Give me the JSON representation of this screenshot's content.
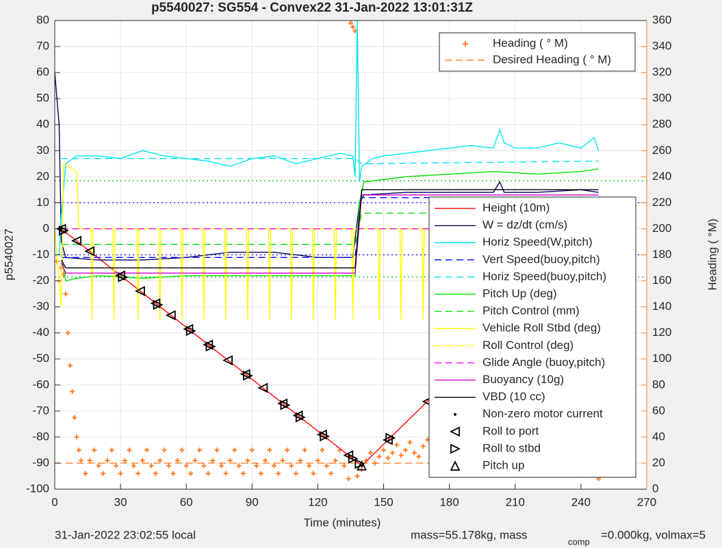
{
  "chart_data": {
    "type": "line",
    "title": "p5540027: SG554 - Convex22 31-Jan-2022 13:01:31Z",
    "xlabel": "Time (minutes)",
    "ylabel": "p5540027",
    "y2label": "Heading (  °M)",
    "y2color": "#ff7f27",
    "xlim": [
      0,
      270
    ],
    "xticks": [
      0,
      30,
      60,
      90,
      120,
      150,
      180,
      210,
      240,
      270
    ],
    "ylim": [
      -100,
      80
    ],
    "yticks": [
      -100,
      -90,
      -80,
      -70,
      -60,
      -50,
      -40,
      -30,
      -20,
      -10,
      0,
      10,
      20,
      30,
      40,
      50,
      60,
      70,
      80
    ],
    "y2lim": [
      0,
      360
    ],
    "y2ticks": [
      0,
      20,
      40,
      60,
      80,
      100,
      120,
      140,
      160,
      180,
      200,
      220,
      240,
      260,
      280,
      300,
      320,
      340,
      360
    ],
    "grid": true,
    "footer": [
      "31-Jan-2022 23:02:55 local",
      "mass=55.178kg, mass",
      "comp",
      "=0.000kg, volmax=5"
    ],
    "reference_lines": [
      {
        "value": 18.5,
        "color": "#00c000"
      },
      {
        "value": -18.5,
        "color": "#00c000"
      },
      {
        "value": 10,
        "color": "#0000ff"
      },
      {
        "value": -10,
        "color": "#0000ff"
      }
    ],
    "series": [
      {
        "name": "Heading (  ° M)",
        "color": "#ff7f27",
        "axis": "y2",
        "style": "markers",
        "marker": "plus",
        "x": [
          1,
          2,
          3,
          4,
          5,
          6,
          7,
          8,
          9,
          10,
          11,
          12,
          14,
          16,
          18,
          20,
          22,
          24,
          26,
          28,
          30,
          32,
          34,
          36,
          38,
          40,
          42,
          44,
          46,
          48,
          50,
          52,
          54,
          56,
          58,
          60,
          62,
          64,
          66,
          68,
          70,
          72,
          74,
          76,
          78,
          80,
          82,
          84,
          86,
          88,
          90,
          92,
          94,
          96,
          98,
          100,
          102,
          104,
          106,
          108,
          110,
          112,
          114,
          116,
          118,
          120,
          122,
          124,
          126,
          128,
          130,
          132,
          134,
          135,
          136,
          137,
          138,
          140,
          142,
          144,
          146,
          148,
          150,
          152,
          154,
          156,
          158,
          160,
          162,
          164,
          166,
          168,
          170,
          172,
          174,
          176,
          178,
          180,
          182,
          184,
          186,
          188,
          190,
          192,
          194,
          196,
          198,
          200,
          202,
          204,
          206,
          208,
          210,
          212,
          214,
          216,
          218,
          220,
          222,
          224,
          226,
          228,
          230,
          232,
          234,
          236,
          238,
          240,
          242,
          243,
          244,
          246,
          247,
          248
        ],
        "values": [
          175,
          160,
          170,
          165,
          150,
          120,
          95,
          75,
          55,
          40,
          30,
          22,
          12,
          22,
          30,
          18,
          12,
          22,
          30,
          18,
          12,
          22,
          30,
          18,
          12,
          22,
          30,
          18,
          12,
          22,
          30,
          18,
          12,
          22,
          30,
          18,
          12,
          22,
          30,
          18,
          12,
          22,
          30,
          18,
          12,
          22,
          30,
          18,
          12,
          22,
          30,
          18,
          12,
          22,
          30,
          18,
          12,
          22,
          30,
          18,
          12,
          22,
          30,
          18,
          12,
          22,
          30,
          18,
          12,
          22,
          30,
          18,
          8,
          358,
          355,
          352,
          10,
          15,
          22,
          28,
          20,
          25,
          30,
          24,
          28,
          34,
          26,
          30,
          36,
          28,
          25,
          33,
          38,
          30,
          26,
          34,
          38,
          28,
          25,
          34,
          40,
          30,
          26,
          34,
          40,
          30,
          27,
          35,
          40,
          30,
          28,
          36,
          40,
          30,
          28,
          36,
          42,
          30,
          28,
          36,
          42,
          32,
          30,
          38,
          44,
          34,
          30,
          40,
          42,
          48,
          40,
          25,
          15,
          8
        ]
      },
      {
        "name": "Desired Heading (    ° M)",
        "color": "#ff7f27",
        "axis": "y2",
        "style": "dashed",
        "x": [
          0,
          248
        ],
        "values": [
          20,
          20
        ]
      },
      {
        "name": "Height (10m)",
        "color": "#ff0000",
        "style": "solid",
        "x": [
          3,
          140,
          248
        ],
        "values": [
          0,
          -91,
          -2
        ]
      },
      {
        "name": "W = dz/dt (cm/s)",
        "color": "#000060",
        "style": "solid",
        "x": [
          0,
          2,
          3,
          5,
          20,
          40,
          60,
          80,
          100,
          120,
          136,
          139,
          141,
          160,
          180,
          200,
          203,
          205,
          220,
          240,
          248
        ],
        "values": [
          60,
          40,
          -5,
          -11,
          -12,
          -12,
          -11,
          -9,
          -9,
          -11,
          -11,
          10,
          13,
          14,
          14,
          14,
          18,
          14,
          14,
          15,
          14
        ]
      },
      {
        "name": "Horiz Speed(W,pitch)",
        "color": "#00e5ee",
        "style": "solid",
        "x": [
          2,
          3,
          5,
          10,
          20,
          30,
          40,
          50,
          60,
          70,
          80,
          90,
          100,
          110,
          120,
          130,
          136,
          137,
          138,
          139,
          140,
          145,
          150,
          160,
          170,
          180,
          190,
          200,
          203,
          205,
          210,
          220,
          230,
          240,
          246,
          248
        ],
        "values": [
          -10,
          5,
          25,
          28,
          28,
          27,
          30,
          28,
          27,
          26,
          24,
          27,
          28,
          25,
          27,
          29,
          28,
          20,
          80,
          18,
          24,
          27,
          28,
          29,
          30,
          31,
          32,
          31,
          38,
          33,
          31,
          31,
          33,
          31,
          35,
          30
        ]
      },
      {
        "name": "Vert Speed(buoy,pitch)",
        "color": "#0000ff",
        "style": "dashed",
        "x": [
          3,
          137,
          140,
          248
        ],
        "values": [
          -11,
          -11,
          12,
          12
        ]
      },
      {
        "name": "Horiz Speed(buoy,pitch)",
        "color": "#00e5ee",
        "style": "dashed",
        "x": [
          3,
          137,
          140,
          248
        ],
        "values": [
          27,
          27,
          25,
          26
        ]
      },
      {
        "name": "Pitch Up (deg)",
        "color": "#00e000",
        "style": "solid",
        "x": [
          3,
          5,
          10,
          20,
          40,
          60,
          80,
          100,
          120,
          137,
          139,
          141,
          160,
          180,
          200,
          220,
          240,
          248
        ],
        "values": [
          -10,
          -20,
          -19,
          -18,
          -19,
          -18,
          -18,
          -18,
          -18,
          -18,
          10,
          18,
          20,
          21,
          22,
          21,
          22,
          23
        ]
      },
      {
        "name": "Pitch Control (mm)",
        "color": "#00e000",
        "style": "dashed",
        "x": [
          3,
          137,
          140,
          248
        ],
        "values": [
          -6,
          -6,
          6,
          6
        ]
      },
      {
        "name": "Vehicle Roll Stbd (deg)",
        "color": "#ffff00",
        "style": "solid",
        "x": [
          0,
          3,
          4,
          10,
          11,
          16.5,
          17,
          17.5,
          26.5,
          27,
          27.5,
          37.5,
          38,
          38.5,
          47.5,
          48,
          48.5,
          57.5,
          58,
          58.5,
          67.5,
          68,
          68.5,
          77.5,
          78,
          78.5,
          87.5,
          88,
          88.5,
          97.5,
          98,
          98.5,
          107.5,
          108,
          108.5,
          117.5,
          118,
          118.5,
          127.5,
          128,
          128.5,
          135.5,
          136,
          136.5,
          147.5,
          148,
          148.5,
          157.5,
          158,
          158.5,
          167.5,
          168,
          168.5,
          177.5,
          178,
          178.5,
          187.5,
          188,
          188.5,
          197.5,
          198,
          198.5,
          207.5,
          208,
          208.5,
          217.5,
          218,
          218.5,
          227.5,
          228,
          228.5,
          237.5,
          238,
          238.5,
          245.5,
          246,
          246.5,
          248
        ],
        "values": [
          0,
          -30,
          25,
          22,
          0,
          0,
          -35,
          0,
          0,
          -35,
          0,
          0,
          -35,
          0,
          0,
          -35,
          0,
          0,
          -35,
          0,
          0,
          -35,
          0,
          0,
          -35,
          0,
          0,
          -35,
          0,
          0,
          -35,
          0,
          0,
          -35,
          0,
          0,
          -35,
          0,
          0,
          -35,
          0,
          0,
          -35,
          0,
          0,
          -35,
          0,
          0,
          -35,
          0,
          0,
          -35,
          0,
          0,
          -35,
          0,
          0,
          -35,
          0,
          0,
          -35,
          0,
          0,
          -35,
          0,
          0,
          -35,
          0,
          0,
          -35,
          0,
          0,
          -35,
          0,
          0,
          -35,
          0,
          0
        ]
      },
      {
        "name": "Roll Control (deg)",
        "color": "#ffff00",
        "style": "dashed",
        "x": [
          3,
          248
        ],
        "values": [
          0,
          0
        ]
      },
      {
        "name": "Glide Angle (buoy,pitch)",
        "color": "#ff00ff",
        "style": "dashed",
        "x": [
          3,
          248
        ],
        "values": [
          0,
          0
        ]
      },
      {
        "name": "Buoyancy (10g)",
        "color": "#cc00cc",
        "style": "solid",
        "x": [
          3,
          5,
          137,
          140,
          248
        ],
        "values": [
          -13,
          -17,
          -17,
          13,
          13
        ]
      },
      {
        "name": "VBD (10 cc)",
        "color": "#000000",
        "style": "solid",
        "x": [
          3,
          5,
          137,
          140,
          248
        ],
        "values": [
          -12,
          -15,
          -15,
          15,
          15
        ]
      },
      {
        "name": "Non-zero motor current",
        "color": "#000000",
        "style": "markers",
        "marker": "dot",
        "x": [
          3,
          140,
          248
        ],
        "values": [
          0,
          -91,
          -2
        ]
      },
      {
        "name": "Roll to port",
        "color": "#000000",
        "style": "markers",
        "marker": "triangle-left",
        "x": [
          3,
          10,
          16,
          30,
          39,
          46,
          53,
          61,
          70,
          79,
          87,
          95,
          104,
          111,
          122,
          134,
          152,
          170,
          181,
          189,
          203,
          214,
          222,
          229,
          236,
          245
        ],
        "values": [
          0,
          -4.6,
          -8.6,
          -17.9,
          -23.9,
          -28.6,
          -33.2,
          -38.5,
          -44.5,
          -50.5,
          -55.8,
          -61.1,
          -67.1,
          -71.7,
          -79,
          -87,
          -81.1,
          -66.3,
          -57.2,
          -50.6,
          -39.1,
          -30,
          -23.4,
          -17.7,
          -11.9,
          -4.5
        ]
      },
      {
        "name": "Roll to stbd",
        "color": "#000000",
        "style": "markers",
        "marker": "triangle-right",
        "x": [
          4,
          31,
          47,
          62,
          71,
          88,
          105,
          112,
          123,
          136,
          139,
          153,
          176,
          189,
          204,
          215,
          223,
          230,
          237,
          248
        ],
        "values": [
          -0.7,
          -18.6,
          -29.2,
          -39.2,
          -45.2,
          -56.4,
          -67.7,
          -72.4,
          -79.7,
          -88.3,
          -90.3,
          -80.3,
          -61.4,
          -50.6,
          -38.3,
          -29.2,
          -22.6,
          -16.9,
          -11.1,
          -1.6
        ]
      },
      {
        "name": "Pitch up",
        "color": "#000000",
        "style": "markers",
        "marker": "triangle-up",
        "x": [
          140
        ],
        "values": [
          -91
        ]
      }
    ]
  }
}
